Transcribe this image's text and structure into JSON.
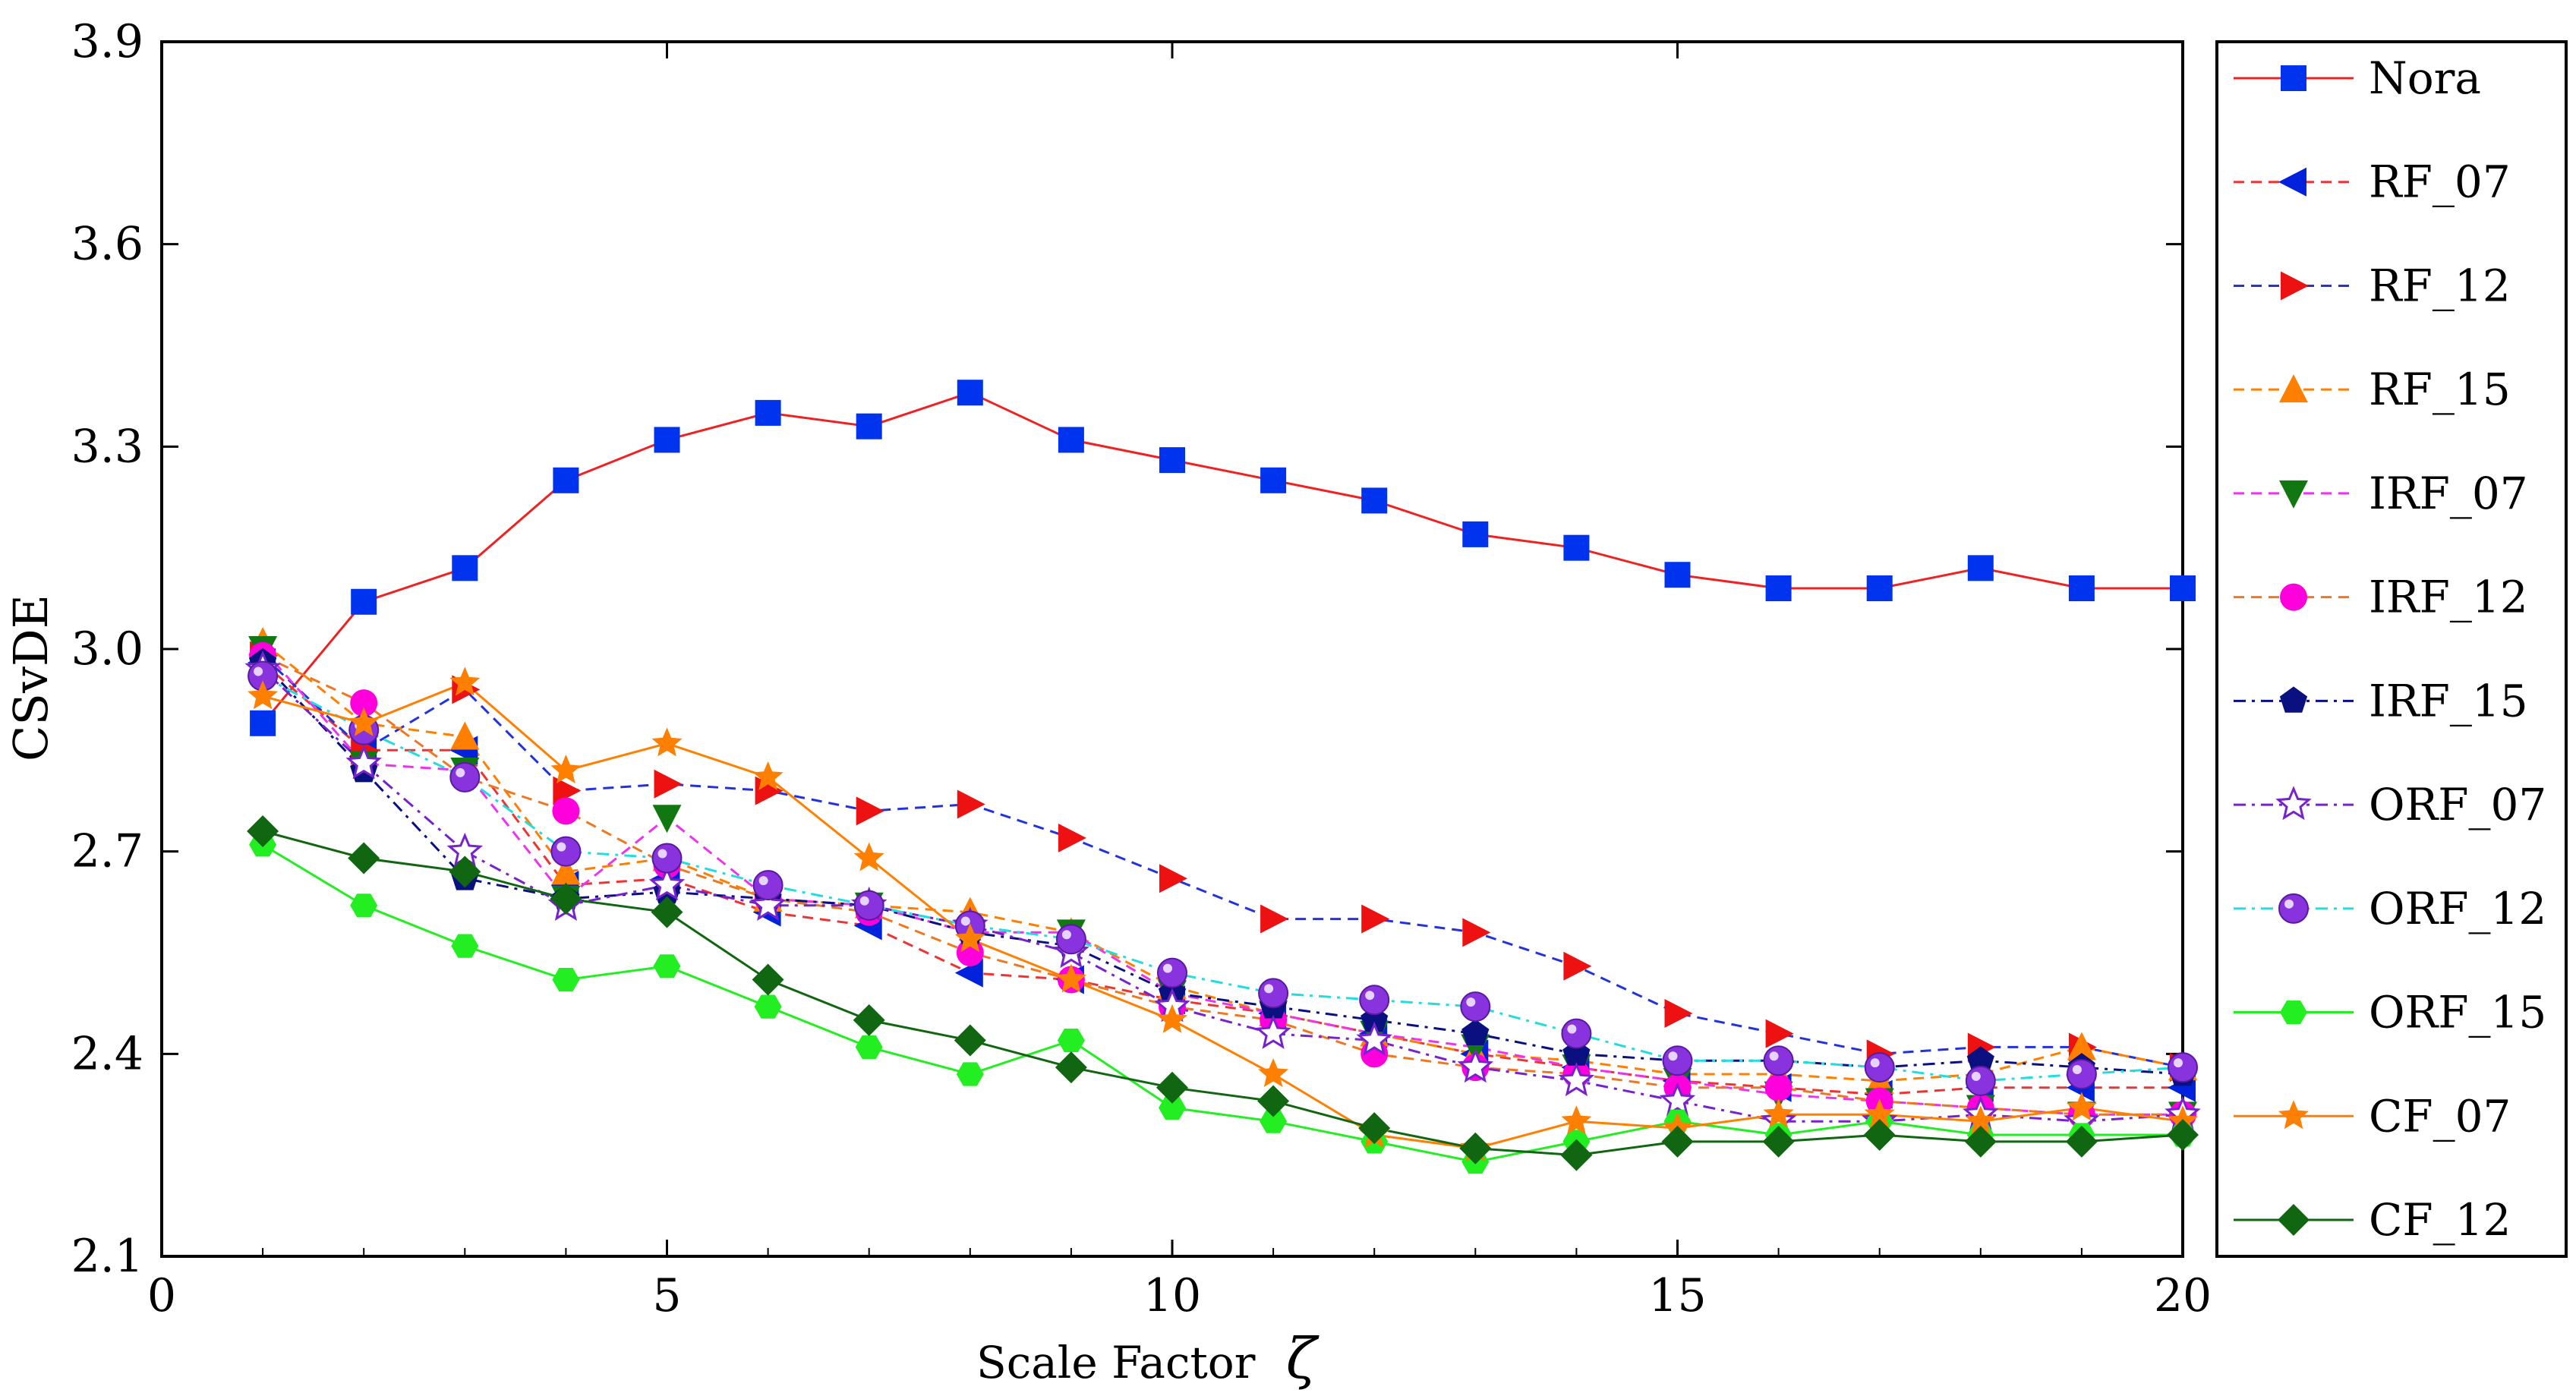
{
  "chart_data": {
    "type": "line",
    "title": "",
    "xlabel": "Scale Factor",
    "xlabel_symbol": "ζ",
    "ylabel": "CSvDE",
    "xlim": [
      0,
      20
    ],
    "ylim": [
      2.1,
      3.9
    ],
    "xticks": [
      "0",
      "5",
      "10",
      "15",
      "20"
    ],
    "yticks": [
      "2.1",
      "2.4",
      "2.7",
      "3.0",
      "3.3",
      "3.6",
      "3.9"
    ],
    "legend_position": "right-outside",
    "x": [
      1,
      2,
      3,
      4,
      5,
      6,
      7,
      8,
      9,
      10,
      11,
      12,
      13,
      14,
      15,
      16,
      17,
      18,
      19,
      20
    ],
    "series": [
      {
        "name": "Nora",
        "color": "#0033ee",
        "line_color": "#ee2222",
        "marker": "square",
        "dash": "solid",
        "values": [
          2.89,
          3.07,
          3.12,
          3.25,
          3.31,
          3.35,
          3.33,
          3.38,
          3.31,
          3.28,
          3.25,
          3.22,
          3.17,
          3.15,
          3.11,
          3.09,
          3.09,
          3.12,
          3.09,
          3.09
        ]
      },
      {
        "name": "RF_07",
        "color": "#0022dd",
        "line_color": "#ee3333",
        "marker": "triangle-left",
        "dash": "dashed",
        "values": [
          2.98,
          2.85,
          2.85,
          2.65,
          2.66,
          2.61,
          2.59,
          2.52,
          2.51,
          2.48,
          2.46,
          2.43,
          2.4,
          2.38,
          2.36,
          2.35,
          2.34,
          2.35,
          2.35,
          2.35
        ]
      },
      {
        "name": "RF_12",
        "color": "#ee1111",
        "line_color": "#2233dd",
        "marker": "triangle-right",
        "dash": "dashed",
        "values": [
          2.99,
          2.85,
          2.94,
          2.79,
          2.8,
          2.79,
          2.76,
          2.77,
          2.72,
          2.66,
          2.6,
          2.6,
          2.58,
          2.53,
          2.46,
          2.43,
          2.4,
          2.41,
          2.41,
          2.38
        ]
      },
      {
        "name": "RF_15",
        "color": "#ff7f00",
        "line_color": "#ff7f00",
        "marker": "triangle-up",
        "dash": "dashed",
        "values": [
          3.01,
          2.89,
          2.87,
          2.67,
          2.69,
          2.63,
          2.62,
          2.61,
          2.58,
          2.5,
          2.46,
          2.43,
          2.4,
          2.39,
          2.37,
          2.37,
          2.36,
          2.37,
          2.41,
          2.38
        ]
      },
      {
        "name": "IRF_07",
        "color": "#117711",
        "line_color": "#ee33ee",
        "marker": "triangle-down",
        "dash": "dashed",
        "values": [
          3.0,
          2.83,
          2.82,
          2.63,
          2.75,
          2.63,
          2.62,
          2.58,
          2.58,
          2.49,
          2.46,
          2.43,
          2.41,
          2.38,
          2.36,
          2.34,
          2.33,
          2.32,
          2.31,
          2.31
        ]
      },
      {
        "name": "IRF_12",
        "color": "#ff00dd",
        "line_color": "#ee7722",
        "marker": "circle",
        "dash": "dashed",
        "values": [
          2.99,
          2.92,
          2.81,
          2.76,
          2.68,
          2.63,
          2.61,
          2.55,
          2.51,
          2.47,
          2.45,
          2.4,
          2.38,
          2.37,
          2.35,
          2.35,
          2.33,
          2.32,
          2.31,
          2.31
        ]
      },
      {
        "name": "IRF_15",
        "color": "#0a1080",
        "line_color": "#0a1080",
        "marker": "pentagon",
        "dash": "dashdot",
        "values": [
          2.98,
          2.82,
          2.66,
          2.63,
          2.64,
          2.63,
          2.62,
          2.58,
          2.56,
          2.49,
          2.47,
          2.45,
          2.43,
          2.4,
          2.39,
          2.39,
          2.38,
          2.39,
          2.38,
          2.37
        ]
      },
      {
        "name": "ORF_07",
        "color": "#7722cc",
        "line_color": "#7722cc",
        "marker": "star-open",
        "dash": "dashdot",
        "values": [
          2.97,
          2.83,
          2.7,
          2.62,
          2.65,
          2.62,
          2.62,
          2.59,
          2.55,
          2.47,
          2.43,
          2.42,
          2.38,
          2.36,
          2.33,
          2.3,
          2.3,
          2.31,
          2.3,
          2.31
        ]
      },
      {
        "name": "ORF_12",
        "color": "#8833dd",
        "line_color": "#22dddd",
        "marker": "sphere",
        "dash": "dashdot",
        "values": [
          2.96,
          2.88,
          2.81,
          2.7,
          2.69,
          2.65,
          2.62,
          2.59,
          2.57,
          2.52,
          2.49,
          2.48,
          2.47,
          2.43,
          2.39,
          2.39,
          2.38,
          2.36,
          2.37,
          2.38
        ]
      },
      {
        "name": "ORF_15",
        "color": "#22ee22",
        "line_color": "#22ee22",
        "marker": "hexagon",
        "dash": "solid",
        "values": [
          2.71,
          2.62,
          2.56,
          2.51,
          2.53,
          2.47,
          2.41,
          2.37,
          2.42,
          2.32,
          2.3,
          2.27,
          2.24,
          2.27,
          2.3,
          2.28,
          2.3,
          2.28,
          2.28,
          2.28
        ]
      },
      {
        "name": "CF_07",
        "color": "#ff7f00",
        "line_color": "#ff7f00",
        "marker": "star",
        "dash": "solid",
        "values": [
          2.93,
          2.89,
          2.95,
          2.82,
          2.86,
          2.81,
          2.69,
          2.57,
          2.51,
          2.45,
          2.37,
          2.28,
          2.26,
          2.3,
          2.29,
          2.31,
          2.31,
          2.3,
          2.32,
          2.3
        ]
      },
      {
        "name": "CF_12",
        "color": "#116611",
        "line_color": "#116611",
        "marker": "diamond",
        "dash": "solid",
        "values": [
          2.73,
          2.69,
          2.67,
          2.63,
          2.61,
          2.51,
          2.45,
          2.42,
          2.38,
          2.35,
          2.33,
          2.29,
          2.26,
          2.25,
          2.27,
          2.27,
          2.28,
          2.27,
          2.27,
          2.28
        ]
      }
    ]
  }
}
